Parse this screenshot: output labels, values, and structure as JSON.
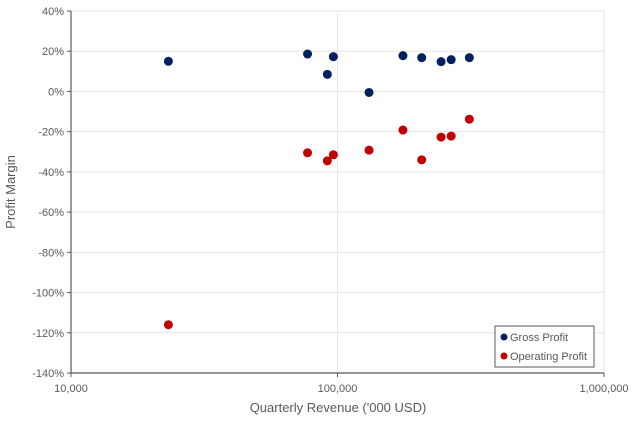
{
  "chart_data": {
    "type": "scatter",
    "title": "",
    "xlabel": "Quarterly Revenue ('000 USD)",
    "ylabel": "Profit Margin",
    "x_scale": "log",
    "xlim": [
      10000,
      1000000
    ],
    "ylim": [
      -140,
      40
    ],
    "x_ticks": [
      10000,
      100000,
      1000000
    ],
    "x_tick_labels": [
      "10,000",
      "100,000",
      "1,000,000"
    ],
    "y_ticks": [
      40,
      20,
      0,
      -20,
      -40,
      -60,
      -80,
      -100,
      -120,
      -140
    ],
    "y_tick_labels": [
      "40%",
      "20%",
      "0%",
      "-20%",
      "-40%",
      "-60%",
      "-80%",
      "-100%",
      "-120%",
      "-140%"
    ],
    "grid": true,
    "legend_position": "bottom-right",
    "series": [
      {
        "name": "Gross Profit",
        "color": "#002060",
        "x": [
          23200,
          77200,
          96500,
          91600,
          131300,
          176000,
          207000,
          244700,
          267000,
          312400
        ],
        "y": [
          15,
          18.6,
          17.3,
          8.5,
          -0.5,
          17.8,
          16.8,
          14.8,
          15.8,
          16.8
        ]
      },
      {
        "name": "Operating Profit",
        "color": "#C00000",
        "x": [
          23200,
          77200,
          91600,
          96500,
          131300,
          176000,
          207000,
          244700,
          267000,
          312400
        ],
        "y": [
          -116,
          -30.5,
          -34.5,
          -31.5,
          -29.2,
          -19.2,
          -34,
          -22.7,
          -22.2,
          -13.8
        ]
      }
    ]
  }
}
